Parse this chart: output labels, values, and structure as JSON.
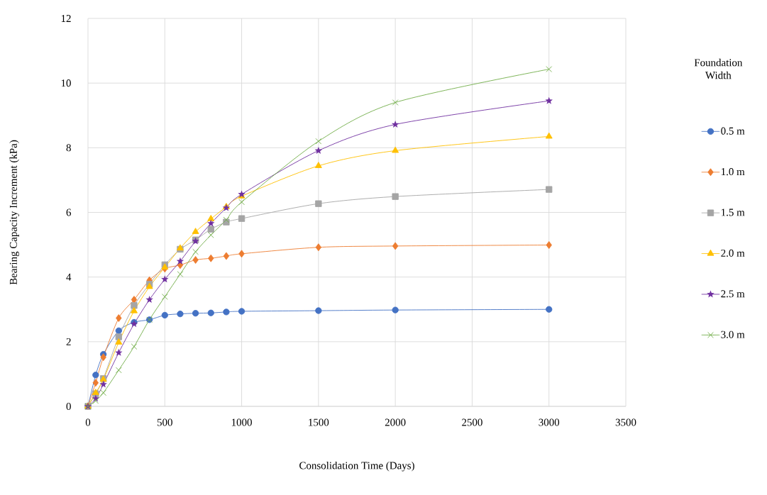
{
  "chart_data": {
    "type": "line",
    "xlabel": "Consolidation Time (Days)",
    "ylabel": "Bearing Capacity Increment (kPa)",
    "legend_title": "Foundation Width",
    "x": [
      0,
      50,
      100,
      200,
      300,
      400,
      500,
      600,
      700,
      800,
      900,
      1000,
      1500,
      2000,
      3000
    ],
    "series": [
      {
        "name": "0.5 m",
        "color": "#4472c4",
        "marker": "circle",
        "values": [
          0,
          0.97,
          1.61,
          2.34,
          2.6,
          2.68,
          2.82,
          2.86,
          2.88,
          2.89,
          2.92,
          2.94,
          2.96,
          2.98,
          3.0
        ]
      },
      {
        "name": "1.0 m",
        "color": "#ed7d31",
        "marker": "diamond",
        "values": [
          0,
          0.73,
          1.52,
          2.73,
          3.3,
          3.9,
          4.26,
          4.37,
          4.53,
          4.58,
          4.65,
          4.72,
          4.92,
          4.96,
          4.99
        ]
      },
      {
        "name": "1.5 m",
        "color": "#a5a5a5",
        "marker": "square",
        "values": [
          0,
          0.39,
          0.86,
          2.15,
          3.12,
          3.78,
          4.38,
          4.86,
          5.15,
          5.48,
          5.7,
          5.81,
          6.27,
          6.49,
          6.71
        ]
      },
      {
        "name": "2.0 m",
        "color": "#ffc000",
        "marker": "triangle",
        "values": [
          0,
          0.42,
          0.83,
          1.98,
          2.95,
          3.7,
          4.3,
          4.89,
          5.4,
          5.8,
          6.17,
          6.5,
          7.44,
          7.91,
          8.35
        ]
      },
      {
        "name": "2.5 m",
        "color": "#7030a0",
        "marker": "star",
        "values": [
          0,
          0.24,
          0.68,
          1.66,
          2.55,
          3.3,
          3.93,
          4.49,
          5.11,
          5.66,
          6.14,
          6.56,
          7.91,
          8.72,
          9.45
        ]
      },
      {
        "name": "3.0 m",
        "color": "#70ad47",
        "marker": "cross",
        "values": [
          0,
          0.17,
          0.42,
          1.12,
          1.85,
          2.68,
          3.39,
          4.09,
          4.78,
          5.3,
          5.77,
          6.32,
          8.2,
          9.4,
          10.43
        ]
      }
    ],
    "xlim": [
      0,
      3500
    ],
    "xticks": [
      0,
      500,
      1000,
      1500,
      2000,
      2500,
      3000,
      3500
    ],
    "ylim": [
      0,
      12
    ],
    "yticks": [
      0,
      2,
      4,
      6,
      8,
      10,
      12
    ],
    "grid": true,
    "legend": "right"
  }
}
